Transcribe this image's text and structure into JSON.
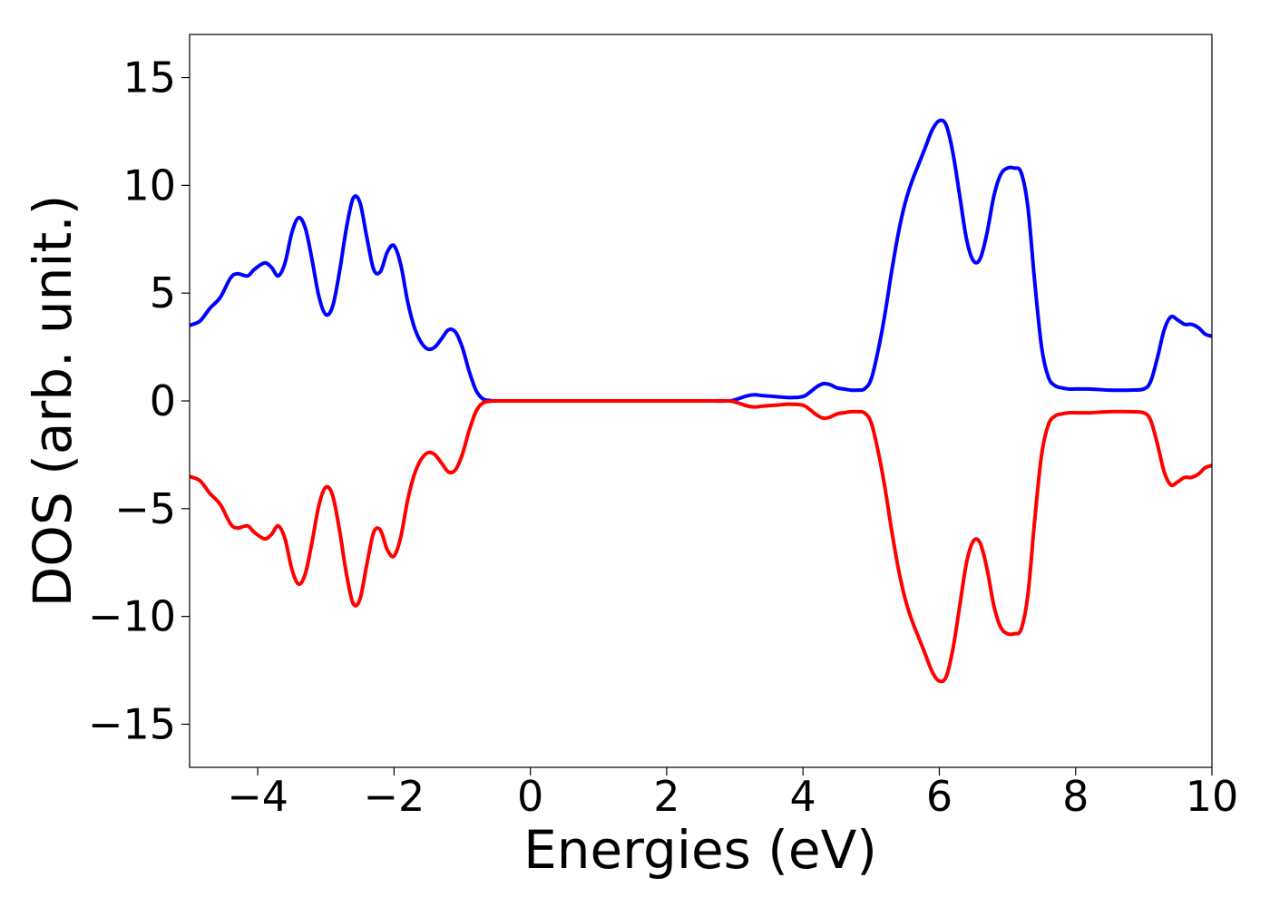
{
  "chart_data": {
    "type": "line",
    "title": "",
    "xlabel": "Energies (eV)",
    "ylabel": "DOS (arb. unit.)",
    "xlim": [
      -5,
      10
    ],
    "ylim": [
      -17,
      17
    ],
    "grid": false,
    "x_ticks": [
      -4,
      -2,
      0,
      2,
      4,
      6,
      8,
      10
    ],
    "x_tick_labels": [
      "−4",
      "−2",
      "0",
      "2",
      "4",
      "6",
      "8",
      "10"
    ],
    "y_ticks": [
      -15,
      -10,
      -5,
      0,
      5,
      10,
      15
    ],
    "y_tick_labels": [
      "−15",
      "−10",
      "−5",
      "0",
      "5",
      "10",
      "15"
    ],
    "series": [
      {
        "color": "#0000ff",
        "x": [
          -5.0,
          -4.85,
          -4.7,
          -4.55,
          -4.4,
          -4.3,
          -4.15,
          -4.05,
          -3.9,
          -3.8,
          -3.7,
          -3.6,
          -3.5,
          -3.4,
          -3.3,
          -3.2,
          -3.1,
          -3.0,
          -2.9,
          -2.8,
          -2.7,
          -2.6,
          -2.5,
          -2.4,
          -2.3,
          -2.2,
          -2.1,
          -2.0,
          -1.9,
          -1.8,
          -1.7,
          -1.6,
          -1.5,
          -1.4,
          -1.3,
          -1.2,
          -1.1,
          -1.0,
          -0.9,
          -0.8,
          -0.7,
          -0.6,
          -0.5,
          0.0,
          1.0,
          2.0,
          2.5,
          2.9,
          3.0,
          3.1,
          3.2,
          3.3,
          3.4,
          3.6,
          3.8,
          4.0,
          4.1,
          4.2,
          4.3,
          4.4,
          4.5,
          4.6,
          4.7,
          4.8,
          4.9,
          5.0,
          5.1,
          5.2,
          5.3,
          5.4,
          5.5,
          5.6,
          5.7,
          5.8,
          5.9,
          6.0,
          6.1,
          6.2,
          6.3,
          6.4,
          6.5,
          6.6,
          6.7,
          6.8,
          6.9,
          7.0,
          7.1,
          7.2,
          7.3,
          7.4,
          7.5,
          7.6,
          7.7,
          7.8,
          7.9,
          8.0,
          8.2,
          8.5,
          8.8,
          9.0,
          9.1,
          9.2,
          9.3,
          9.4,
          9.5,
          9.6,
          9.7,
          9.8,
          9.9,
          10.0
        ],
        "values": [
          3.5,
          3.7,
          4.3,
          4.8,
          5.7,
          5.9,
          5.8,
          6.1,
          6.4,
          6.2,
          5.8,
          6.4,
          7.8,
          8.5,
          8.0,
          6.5,
          4.8,
          4.0,
          4.4,
          6.0,
          8.0,
          9.4,
          9.2,
          7.6,
          6.1,
          6.0,
          6.9,
          7.2,
          6.3,
          4.6,
          3.4,
          2.7,
          2.4,
          2.5,
          2.9,
          3.3,
          3.2,
          2.5,
          1.4,
          0.5,
          0.1,
          0.02,
          0.0,
          0.0,
          0.0,
          0.0,
          0.0,
          0.0,
          0.05,
          0.15,
          0.25,
          0.28,
          0.25,
          0.2,
          0.15,
          0.2,
          0.4,
          0.65,
          0.8,
          0.75,
          0.6,
          0.55,
          0.5,
          0.5,
          0.55,
          1.0,
          2.3,
          4.0,
          6.0,
          7.8,
          9.2,
          10.2,
          11.0,
          11.8,
          12.6,
          13.0,
          12.8,
          11.5,
          9.5,
          7.5,
          6.5,
          6.6,
          7.8,
          9.5,
          10.5,
          10.8,
          10.8,
          10.6,
          9.0,
          5.5,
          2.5,
          1.1,
          0.7,
          0.6,
          0.55,
          0.55,
          0.55,
          0.5,
          0.5,
          0.55,
          0.9,
          2.0,
          3.3,
          3.9,
          3.75,
          3.55,
          3.55,
          3.4,
          3.1,
          3.0
        ]
      },
      {
        "color": "#ff0000",
        "x": [
          -5.0,
          -4.85,
          -4.7,
          -4.55,
          -4.4,
          -4.3,
          -4.15,
          -4.05,
          -3.9,
          -3.8,
          -3.7,
          -3.6,
          -3.5,
          -3.4,
          -3.3,
          -3.2,
          -3.1,
          -3.0,
          -2.9,
          -2.8,
          -2.7,
          -2.6,
          -2.5,
          -2.4,
          -2.3,
          -2.2,
          -2.1,
          -2.0,
          -1.9,
          -1.8,
          -1.7,
          -1.6,
          -1.5,
          -1.4,
          -1.3,
          -1.2,
          -1.1,
          -1.0,
          -0.9,
          -0.8,
          -0.7,
          -0.6,
          -0.5,
          0.0,
          1.0,
          2.0,
          2.5,
          2.9,
          3.0,
          3.1,
          3.2,
          3.3,
          3.4,
          3.6,
          3.8,
          4.0,
          4.1,
          4.2,
          4.3,
          4.4,
          4.5,
          4.6,
          4.7,
          4.8,
          4.9,
          5.0,
          5.1,
          5.2,
          5.3,
          5.4,
          5.5,
          5.6,
          5.7,
          5.8,
          5.9,
          6.0,
          6.1,
          6.2,
          6.3,
          6.4,
          6.5,
          6.6,
          6.7,
          6.8,
          6.9,
          7.0,
          7.1,
          7.2,
          7.3,
          7.4,
          7.5,
          7.6,
          7.7,
          7.8,
          7.9,
          8.0,
          8.2,
          8.5,
          8.8,
          9.0,
          9.1,
          9.2,
          9.3,
          9.4,
          9.5,
          9.6,
          9.7,
          9.8,
          9.9,
          10.0
        ],
        "values": [
          -3.5,
          -3.7,
          -4.3,
          -4.8,
          -5.7,
          -5.9,
          -5.8,
          -6.1,
          -6.4,
          -6.2,
          -5.8,
          -6.4,
          -7.8,
          -8.5,
          -8.0,
          -6.5,
          -4.8,
          -4.0,
          -4.4,
          -6.0,
          -8.0,
          -9.4,
          -9.2,
          -7.6,
          -6.1,
          -6.0,
          -6.9,
          -7.2,
          -6.3,
          -4.6,
          -3.4,
          -2.7,
          -2.4,
          -2.5,
          -2.9,
          -3.3,
          -3.2,
          -2.5,
          -1.4,
          -0.5,
          -0.1,
          -0.02,
          0.0,
          0.0,
          0.0,
          0.0,
          0.0,
          0.0,
          -0.05,
          -0.15,
          -0.25,
          -0.28,
          -0.25,
          -0.2,
          -0.15,
          -0.2,
          -0.4,
          -0.65,
          -0.8,
          -0.75,
          -0.6,
          -0.55,
          -0.5,
          -0.5,
          -0.55,
          -1.0,
          -2.3,
          -4.0,
          -6.0,
          -7.8,
          -9.2,
          -10.2,
          -11.0,
          -11.8,
          -12.6,
          -13.0,
          -12.8,
          -11.5,
          -9.5,
          -7.5,
          -6.5,
          -6.6,
          -7.8,
          -9.5,
          -10.5,
          -10.8,
          -10.8,
          -10.6,
          -9.0,
          -5.5,
          -2.5,
          -1.1,
          -0.7,
          -0.6,
          -0.55,
          -0.55,
          -0.55,
          -0.5,
          -0.5,
          -0.55,
          -0.9,
          -2.0,
          -3.3,
          -3.9,
          -3.75,
          -3.55,
          -3.55,
          -3.4,
          -3.1,
          -3.0
        ]
      }
    ]
  }
}
